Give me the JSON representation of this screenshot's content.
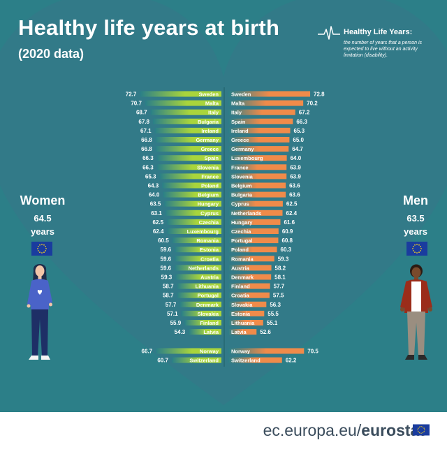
{
  "header": {
    "title": "Healthy life years at birth",
    "subtitle": "(2020 data)"
  },
  "definition": {
    "title": "Healthy Life Years:",
    "text": "the number of years that a person is expected to live without an activity limitation (disability).",
    "icon": "pulse-icon"
  },
  "women": {
    "label": "Women",
    "value": "64.5",
    "unit": "years"
  },
  "men": {
    "label": "Men",
    "value": "63.5",
    "unit": "years"
  },
  "colors": {
    "background": "#2c7f88",
    "heart": "#327a88",
    "women_bar_light": "#a9d53c",
    "women_bar_dark": "#2a7f88",
    "men_bar_light": "#f08b4a",
    "men_bar_dark": "#2a7f88",
    "footer_text": "#3a4c5c"
  },
  "footer": {
    "domain": "ec.europa.eu/",
    "brand": "eurostat"
  },
  "chart_data": {
    "type": "bar",
    "title": "Healthy life years at birth",
    "subtitle": "(2020 data)",
    "series": [
      {
        "name": "Women",
        "categories": [
          "Sweden",
          "Malta",
          "Italy",
          "Bulgaria",
          "Ireland",
          "Germany",
          "Greece",
          "Spain",
          "Slovenia",
          "France",
          "Poland",
          "Belgium",
          "Hungary",
          "Cyprus",
          "Czechia",
          "Luxembourg",
          "Romania",
          "Estonia",
          "Croatia",
          "Netherlands",
          "Austria",
          "Lithuania",
          "Portugal",
          "Denmark",
          "Slovakia",
          "Finland",
          "Latvia",
          "Norway",
          "Switzerland"
        ],
        "values": [
          72.7,
          70.7,
          68.7,
          67.8,
          67.1,
          66.8,
          66.8,
          66.3,
          66.3,
          65.3,
          64.3,
          64.0,
          63.5,
          63.1,
          62.5,
          62.4,
          60.5,
          59.6,
          59.6,
          59.6,
          59.3,
          58.7,
          58.7,
          57.7,
          57.1,
          55.9,
          54.3,
          66.7,
          60.7
        ],
        "labels": [
          "72.7",
          "70.7",
          "68.7",
          "67.8",
          "67.1",
          "66.8",
          "66.8",
          "66.3",
          "66.3",
          "65.3",
          "64.3",
          "64.0",
          "63.5",
          "63.1",
          "62.5",
          "62.4",
          "60.5",
          "59.6",
          "59.6",
          "59.6",
          "59.3",
          "58.7",
          "58.7",
          "57.7",
          "57.1",
          "55.9",
          "54.3",
          "66.7",
          "60.7"
        ]
      },
      {
        "name": "Men",
        "categories": [
          "Sweden",
          "Malta",
          "Italy",
          "Spain",
          "Ireland",
          "Greece",
          "Germany",
          "Luxembourg",
          "France",
          "Slovenia",
          "Belgium",
          "Bulgaria",
          "Cyprus",
          "Netherlands",
          "Hungary",
          "Czechia",
          "Portugal",
          "Poland",
          "Romania",
          "Austria",
          "Denmark",
          "Finland",
          "Croatia",
          "Slovakia",
          "Estonia",
          "Lithuania",
          "Latvia",
          "Norway",
          "Switzerland"
        ],
        "values": [
          72.8,
          70.2,
          67.2,
          66.3,
          65.3,
          65.0,
          64.7,
          64.0,
          63.9,
          63.9,
          63.6,
          63.6,
          62.5,
          62.4,
          61.6,
          60.9,
          60.8,
          60.3,
          59.3,
          58.2,
          58.1,
          57.7,
          57.5,
          56.3,
          55.5,
          55.1,
          52.6,
          70.5,
          62.2
        ],
        "labels": [
          "72.8",
          "70.2",
          "67.2",
          "66.3",
          "65.3",
          "65.0",
          "64.7",
          "64.0",
          "63.9",
          "63.9",
          "63.6",
          "63.6",
          "62.5",
          "62.4",
          "61.6",
          "60.9",
          "60.8",
          "60.3",
          "59.3",
          "58.2",
          "58.1",
          "57.7",
          "57.5",
          "56.3",
          "55.5",
          "55.1",
          "52.6",
          "70.5",
          "62.2"
        ]
      }
    ],
    "average": {
      "Women": 64.5,
      "Men": 63.5
    },
    "legend": "none",
    "grid": false
  }
}
